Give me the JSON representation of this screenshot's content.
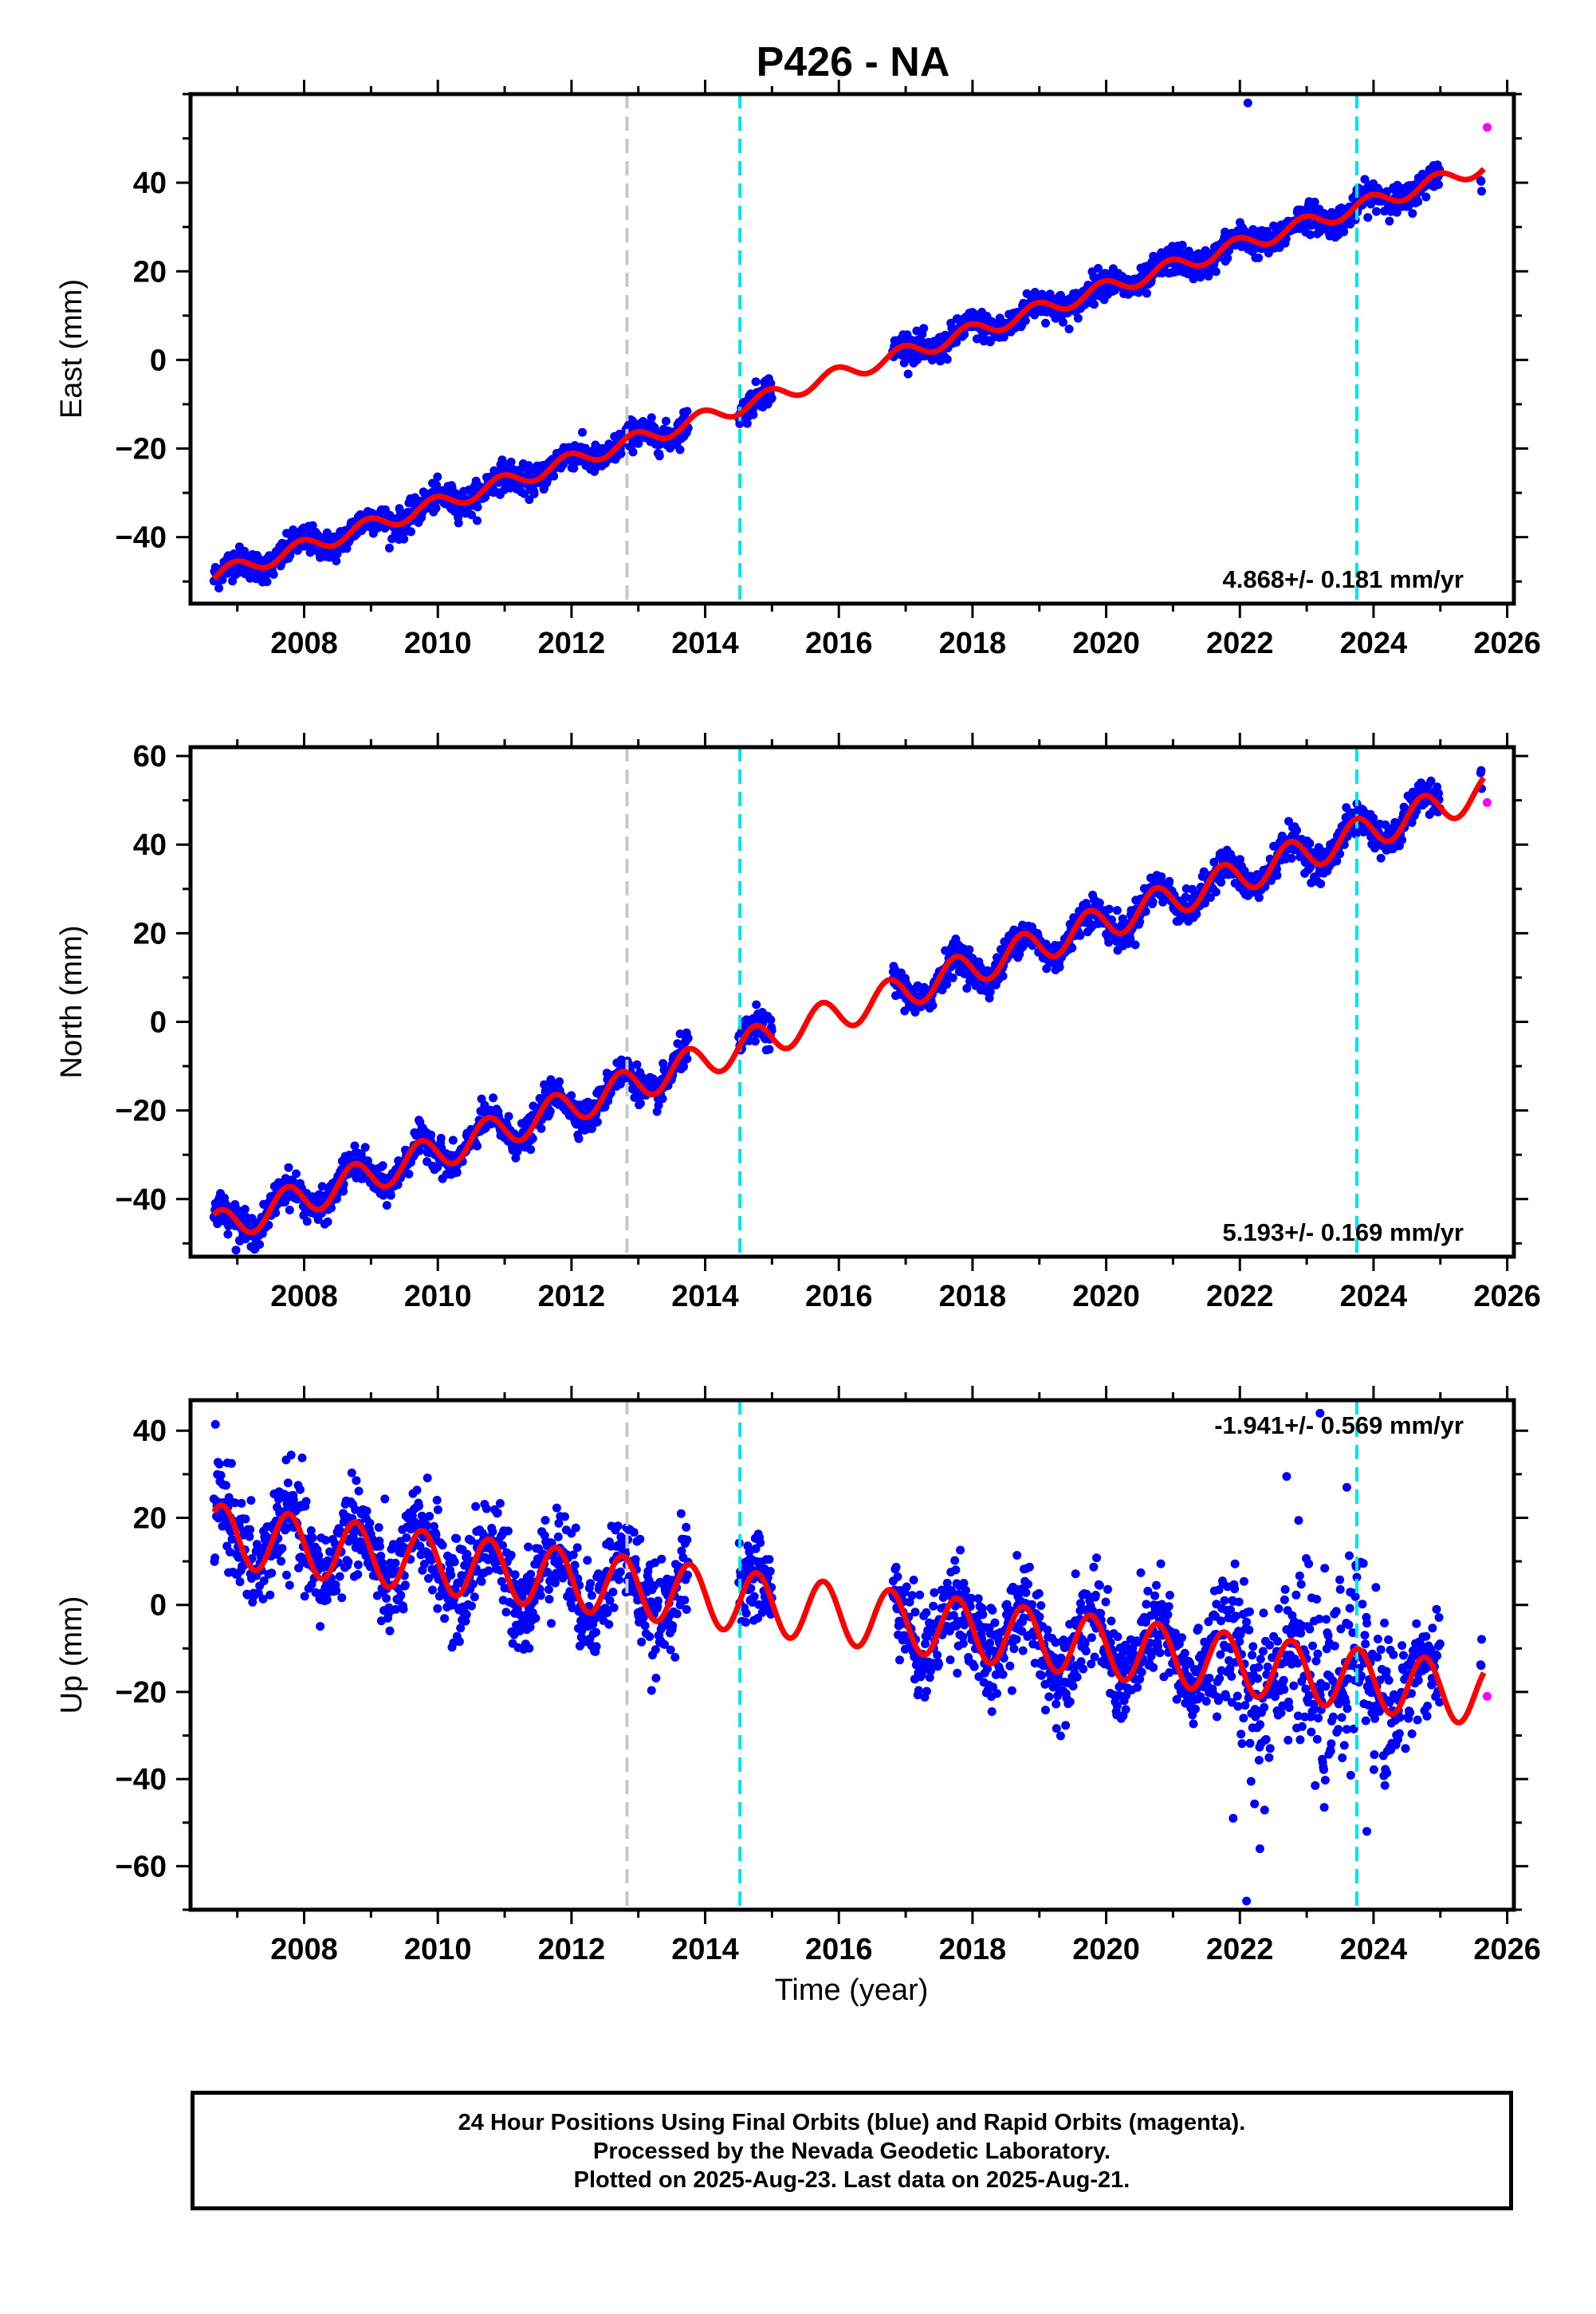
{
  "colors": {
    "final_orbits": "#0000ff",
    "rapid_orbits": "#ff00ff",
    "model": "#ff0000",
    "event_gray": "#c8c8c8",
    "event_cyan": "#00e5ee"
  },
  "chart_data": {
    "title": "P426 - NA",
    "xlabel": "Time (year)",
    "events": [
      {
        "x": 2012.83,
        "color": "gray",
        "style": "dashed"
      },
      {
        "x": 2014.52,
        "color": "cyan",
        "style": "dashed"
      },
      {
        "x": 2023.75,
        "color": "cyan",
        "style": "dashed"
      }
    ],
    "panels": [
      {
        "type": "scatter",
        "ylabel": "East (mm)",
        "xlim": [
          2006.3,
          2026.1
        ],
        "ylim": [
          -55,
          60
        ],
        "xticks": [
          2008,
          2010,
          2012,
          2014,
          2016,
          2018,
          2020,
          2022,
          2024,
          2026
        ],
        "yticks": [
          -40,
          -20,
          0,
          20,
          40
        ],
        "rate_label": "4.868+/- 0.181 mm/yr",
        "rate_position": "bottom-right",
        "model": {
          "at_2006_7": -48.6,
          "rate_mm_per_yr": 4.868,
          "annual_amplitude": 1.8,
          "annual_phase": 0.0
        },
        "gaps": [
          [
            2013.75,
            2014.5
          ],
          [
            2015.0,
            2016.8
          ],
          [
            2025.0,
            2025.6
          ]
        ],
        "scatter_noise": 1.6,
        "extra_points": [
          [
            2022.12,
            58.0
          ]
        ],
        "rapid_points": [
          [
            2025.7,
            52.5
          ]
        ],
        "series": [
          {
            "name": "Final Orbits",
            "marker": "dot"
          },
          {
            "name": "Rapid Orbits",
            "marker": "dot"
          },
          {
            "name": "Model",
            "marker": "line"
          }
        ]
      },
      {
        "type": "scatter",
        "ylabel": "North (mm)",
        "xlim": [
          2006.3,
          2026.1
        ],
        "ylim": [
          -53,
          62
        ],
        "xticks": [
          2008,
          2010,
          2012,
          2014,
          2016,
          2018,
          2020,
          2022,
          2024,
          2026
        ],
        "yticks": [
          -40,
          -20,
          0,
          20,
          40,
          60
        ],
        "rate_label": "5.193+/- 0.169 mm/yr",
        "rate_position": "bottom-right",
        "model": {
          "at_2006_7": -46.5,
          "rate_mm_per_yr": 5.193,
          "annual_amplitude": 3.8,
          "annual_phase": 1.3
        },
        "gaps": [
          [
            2013.75,
            2014.5
          ],
          [
            2015.0,
            2016.8
          ],
          [
            2025.0,
            2025.6
          ]
        ],
        "scatter_noise": 1.8,
        "extra_points": [],
        "rapid_points": [
          [
            2025.7,
            49.5
          ]
        ],
        "series": [
          {
            "name": "Final Orbits",
            "marker": "dot"
          },
          {
            "name": "Rapid Orbits",
            "marker": "dot"
          },
          {
            "name": "Model",
            "marker": "line"
          }
        ]
      },
      {
        "type": "scatter",
        "ylabel": "Up (mm)",
        "xlim": [
          2006.3,
          2026.1
        ],
        "ylim": [
          -70,
          47
        ],
        "xticks": [
          2008,
          2010,
          2012,
          2014,
          2016,
          2018,
          2020,
          2022,
          2024,
          2026
        ],
        "yticks": [
          -60,
          -40,
          -20,
          0,
          20,
          40
        ],
        "rate_label": "-1.941+/- 0.569 mm/yr",
        "rate_position": "top-right",
        "model": {
          "at_2006_7": 16.0,
          "rate_mm_per_yr": -1.941,
          "annual_amplitude": 7.0,
          "annual_phase": 1.15
        },
        "gaps": [
          [
            2013.75,
            2014.5
          ],
          [
            2015.0,
            2016.8
          ],
          [
            2025.0,
            2025.6
          ]
        ],
        "scatter_noise": 5.5,
        "extra_points": [
          [
            2022.1,
            -68.0
          ],
          [
            2022.3,
            -56.0
          ],
          [
            2023.2,
            44.0
          ],
          [
            2022.7,
            29.5
          ],
          [
            2023.6,
            27.0
          ],
          [
            2023.9,
            -52.0
          ],
          [
            2021.9,
            -49.0
          ]
        ],
        "rapid_points": [
          [
            2025.7,
            -21.0
          ]
        ],
        "series": [
          {
            "name": "Final Orbits",
            "marker": "dot"
          },
          {
            "name": "Rapid Orbits",
            "marker": "dot"
          },
          {
            "name": "Model",
            "marker": "line"
          }
        ]
      }
    ]
  },
  "footer": {
    "line1": "24 Hour Positions Using Final Orbits (blue) and Rapid Orbits (magenta).",
    "line2": "Processed by the Nevada Geodetic Laboratory.",
    "line3": "Plotted on 2025-Aug-23. Last data on 2025-Aug-21."
  }
}
